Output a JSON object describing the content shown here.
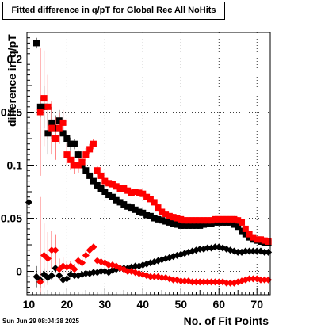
{
  "chart_data": {
    "type": "scatter",
    "title": "Fitted difference in q/pT for Global Rec All NoHits",
    "xlabel": "No. of Fit Points",
    "ylabel": "difference in q/pT",
    "xlim": [
      9.5,
      73.5
    ],
    "ylim": [
      -0.022,
      0.225
    ],
    "xticks": [
      10,
      20,
      30,
      40,
      50,
      60,
      70
    ],
    "yticks": [
      0,
      0.05,
      0.1,
      0.15,
      0.2
    ],
    "ytick_labels": [
      "0",
      "0.05",
      "0.1",
      "0.15",
      "0.2"
    ],
    "grid": true,
    "series": [
      {
        "color": "#000000",
        "marker": "square",
        "x": [
          12,
          13,
          14,
          15,
          16,
          17,
          18,
          19,
          20,
          21,
          22,
          23,
          24,
          25,
          26,
          27,
          28,
          29,
          30,
          31,
          32,
          33,
          34,
          35,
          36,
          37,
          38,
          39,
          40,
          41,
          42,
          43,
          44,
          45,
          46,
          47,
          48,
          49,
          50,
          51,
          52,
          53,
          54,
          55,
          56,
          57,
          58,
          59,
          60,
          61,
          62,
          63,
          64,
          65,
          66,
          67,
          68,
          69,
          70,
          71,
          72,
          73
        ],
        "y": [
          0.215,
          0.155,
          0.155,
          0.13,
          0.14,
          0.135,
          0.142,
          0.13,
          0.125,
          0.12,
          0.12,
          0.11,
          0.1,
          0.095,
          0.09,
          0.085,
          0.081,
          0.078,
          0.075,
          0.072,
          0.07,
          0.067,
          0.065,
          0.063,
          0.061,
          0.06,
          0.058,
          0.056,
          0.055,
          0.053,
          0.052,
          0.05,
          0.049,
          0.048,
          0.047,
          0.046,
          0.045,
          0.044,
          0.043,
          0.043,
          0.043,
          0.043,
          0.043,
          0.043,
          0.044,
          0.045,
          0.045,
          0.046,
          0.046,
          0.046,
          0.046,
          0.046,
          0.044,
          0.042,
          0.038,
          0.035,
          0.032,
          0.03,
          0.029,
          0.028,
          0.027,
          0.027
        ],
        "yerr": [
          0.005,
          0.01,
          0.02,
          0.02,
          0.015,
          0.012,
          0.01,
          0.008,
          0.007,
          0.006,
          0.005,
          0.004,
          0.003,
          0.003,
          0.002,
          0.002,
          0.002,
          0.002,
          0.002,
          0.002,
          0.002,
          0.002,
          0.002,
          0.002,
          0.002,
          0.002,
          0.002,
          0.002,
          0.002,
          0.002,
          0.002,
          0.002,
          0.002,
          0.002,
          0.002,
          0.002,
          0.002,
          0.002,
          0.002,
          0.002,
          0.002,
          0.002,
          0.002,
          0.002,
          0.002,
          0.002,
          0.002,
          0.002,
          0.002,
          0.002,
          0.002,
          0.002,
          0.002,
          0.002,
          0.002,
          0.002,
          0.002,
          0.002,
          0.002,
          0.002,
          0.002,
          0.002
        ]
      },
      {
        "color": "#ff0000",
        "marker": "square",
        "x": [
          13,
          14,
          15,
          16,
          17,
          18,
          19,
          20,
          21,
          22,
          23,
          24,
          25,
          26,
          27,
          28,
          29,
          30,
          31,
          32,
          33,
          34,
          35,
          36,
          37,
          38,
          39,
          40,
          41,
          42,
          43,
          44,
          45,
          46,
          47,
          48,
          49,
          50,
          51,
          52,
          53,
          54,
          55,
          56,
          57,
          58,
          59,
          60,
          61,
          62,
          63,
          64,
          65,
          66,
          67,
          68,
          69,
          70,
          71,
          72,
          73
        ],
        "y": [
          0.15,
          0.163,
          0.155,
          0.135,
          0.125,
          0.135,
          0.14,
          0.11,
          0.105,
          0.1,
          0.1,
          0.103,
          0.11,
          0.115,
          0.12,
          0.095,
          0.09,
          0.085,
          0.083,
          0.082,
          0.08,
          0.078,
          0.078,
          0.076,
          0.074,
          0.075,
          0.074,
          0.073,
          0.07,
          0.068,
          0.065,
          0.06,
          0.056,
          0.054,
          0.052,
          0.051,
          0.05,
          0.049,
          0.048,
          0.048,
          0.048,
          0.048,
          0.048,
          0.048,
          0.048,
          0.048,
          0.049,
          0.049,
          0.049,
          0.049,
          0.049,
          0.049,
          0.048,
          0.046,
          0.04,
          0.035,
          0.032,
          0.03,
          0.03,
          0.029,
          0.028
        ],
        "yerr": [
          0.06,
          0.045,
          0.03,
          0.025,
          0.02,
          0.015,
          0.012,
          0.01,
          0.009,
          0.008,
          0.007,
          0.006,
          0.006,
          0.005,
          0.005,
          0.004,
          0.004,
          0.003,
          0.003,
          0.003,
          0.003,
          0.003,
          0.003,
          0.003,
          0.003,
          0.003,
          0.003,
          0.003,
          0.003,
          0.003,
          0.003,
          0.003,
          0.003,
          0.003,
          0.003,
          0.003,
          0.003,
          0.003,
          0.003,
          0.003,
          0.003,
          0.003,
          0.003,
          0.003,
          0.003,
          0.003,
          0.003,
          0.003,
          0.003,
          0.003,
          0.003,
          0.003,
          0.003,
          0.003,
          0.003,
          0.003,
          0.003,
          0.003,
          0.003,
          0.003,
          0.003
        ]
      },
      {
        "color": "#000000",
        "marker": "diamond",
        "x": [
          10,
          12,
          13,
          14,
          15,
          16,
          17,
          18,
          19,
          20,
          21,
          22,
          23,
          24,
          25,
          26,
          27,
          28,
          29,
          30,
          31,
          32,
          33,
          34,
          35,
          36,
          37,
          38,
          39,
          40,
          41,
          42,
          43,
          44,
          45,
          46,
          47,
          48,
          49,
          50,
          51,
          52,
          53,
          54,
          55,
          56,
          57,
          58,
          59,
          60,
          61,
          62,
          63,
          64,
          65,
          66,
          67,
          68,
          69,
          70,
          71,
          72,
          73
        ],
        "y": [
          0.065,
          -0.005,
          -0.008,
          -0.003,
          -0.006,
          -0.004,
          0.003,
          -0.004,
          -0.008,
          -0.007,
          -0.003,
          -0.004,
          -0.004,
          -0.003,
          -0.002,
          -0.002,
          -0.001,
          -0.001,
          0.0,
          0.0,
          -0.001,
          0.001,
          0.002,
          0.003,
          0.003,
          0.003,
          0.004,
          0.005,
          0.005,
          0.006,
          0.007,
          0.008,
          0.009,
          0.01,
          0.011,
          0.012,
          0.013,
          0.014,
          0.015,
          0.016,
          0.017,
          0.018,
          0.019,
          0.02,
          0.021,
          0.021,
          0.022,
          0.022,
          0.023,
          0.023,
          0.022,
          0.021,
          0.02,
          0.019,
          0.018,
          0.018,
          0.019,
          0.019,
          0.019,
          0.019,
          0.019,
          0.018,
          0.018
        ],
        "yerr": [
          0.002,
          0.01,
          0.008,
          0.006,
          0.005,
          0.004,
          0.004,
          0.003,
          0.003,
          0.003,
          0.002,
          0.002,
          0.002,
          0.002,
          0.002,
          0.002,
          0.002,
          0.002,
          0.002,
          0.002,
          0.002,
          0.002,
          0.002,
          0.002,
          0.002,
          0.002,
          0.002,
          0.002,
          0.002,
          0.002,
          0.002,
          0.002,
          0.002,
          0.002,
          0.002,
          0.002,
          0.002,
          0.002,
          0.002,
          0.002,
          0.002,
          0.002,
          0.002,
          0.002,
          0.002,
          0.002,
          0.002,
          0.002,
          0.002,
          0.002,
          0.002,
          0.002,
          0.002,
          0.002,
          0.002,
          0.002,
          0.002,
          0.002,
          0.002,
          0.002,
          0.002,
          0.002,
          0.002
        ]
      },
      {
        "color": "#ff0000",
        "marker": "diamond",
        "x": [
          13,
          14,
          15,
          16,
          17,
          18,
          19,
          20,
          21,
          22,
          23,
          24,
          25,
          26,
          27,
          28,
          29,
          30,
          31,
          32,
          33,
          34,
          35,
          36,
          37,
          38,
          39,
          40,
          41,
          42,
          43,
          44,
          45,
          46,
          47,
          48,
          49,
          50,
          51,
          52,
          53,
          54,
          55,
          56,
          57,
          58,
          59,
          60,
          61,
          62,
          63,
          64,
          65,
          66,
          67,
          68,
          69,
          70,
          71,
          72,
          73
        ],
        "y": [
          -0.01,
          0.015,
          0.012,
          0.02,
          0.02,
          0.002,
          0.005,
          0.004,
          0.005,
          0.002,
          0.01,
          0.008,
          0.015,
          0.02,
          0.023,
          0.01,
          0.009,
          0.008,
          0.006,
          0.006,
          0.005,
          0.003,
          0.002,
          0.0,
          0.0,
          -0.001,
          -0.002,
          -0.003,
          -0.004,
          -0.005,
          -0.005,
          -0.005,
          -0.006,
          -0.006,
          -0.007,
          -0.008,
          -0.008,
          -0.009,
          -0.009,
          -0.009,
          -0.01,
          -0.01,
          -0.01,
          -0.01,
          -0.01,
          -0.01,
          -0.01,
          -0.01,
          -0.01,
          -0.011,
          -0.011,
          -0.011,
          -0.01,
          -0.009,
          -0.008,
          -0.007,
          -0.007,
          -0.007,
          -0.008,
          -0.008,
          -0.008
        ],
        "yerr": [
          0.08,
          0.03,
          0.025,
          0.018,
          0.015,
          0.01,
          0.008,
          0.006,
          0.005,
          0.005,
          0.004,
          0.004,
          0.004,
          0.003,
          0.003,
          0.003,
          0.003,
          0.002,
          0.002,
          0.002,
          0.002,
          0.002,
          0.002,
          0.002,
          0.002,
          0.002,
          0.002,
          0.002,
          0.002,
          0.002,
          0.002,
          0.002,
          0.002,
          0.002,
          0.002,
          0.002,
          0.002,
          0.002,
          0.002,
          0.002,
          0.002,
          0.002,
          0.002,
          0.002,
          0.002,
          0.002,
          0.002,
          0.002,
          0.002,
          0.002,
          0.002,
          0.002,
          0.002,
          0.002,
          0.002,
          0.002,
          0.002,
          0.002,
          0.002,
          0.002,
          0.002
        ]
      }
    ]
  },
  "timestamp": "Sun Jun 29 08:04:38 2025"
}
